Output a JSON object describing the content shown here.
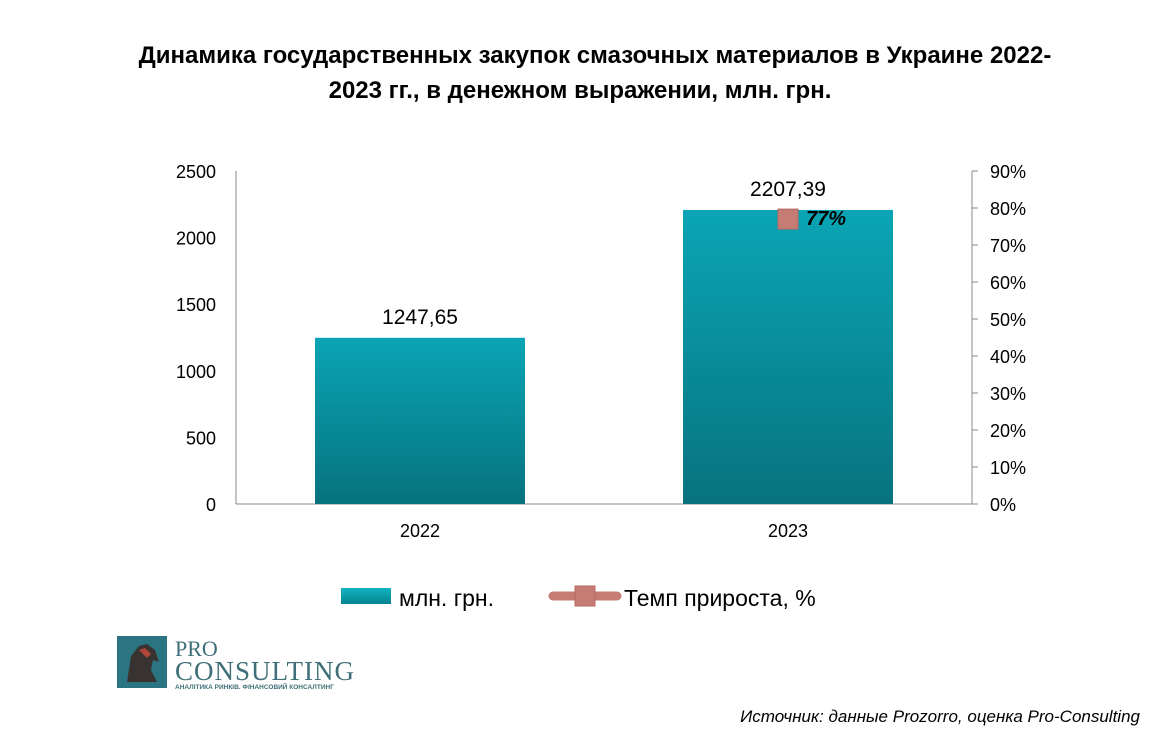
{
  "title_line1": "Динамика государственных закупок смазочных материалов в Украине 2022-",
  "title_line2": "2023 гг., в денежном выражении, млн. грн.",
  "chart_data": {
    "type": "bar",
    "categories": [
      "2022",
      "2023"
    ],
    "series": [
      {
        "name": "млн.  грн.",
        "type": "bar",
        "axis": "left",
        "values": [
          1247.65,
          2207.39
        ],
        "labels": [
          "1247,65",
          "2207,39"
        ],
        "color": "#0b98a8"
      },
      {
        "name": "Темп прироста, %",
        "type": "marker",
        "axis": "right",
        "values": [
          null,
          77
        ],
        "labels": [
          "",
          "77%"
        ],
        "color": "#c47c74"
      }
    ],
    "y_left": {
      "ylim": [
        0,
        2500
      ],
      "ticks": [
        "0",
        "500",
        "1000",
        "1500",
        "2000",
        "2500"
      ]
    },
    "y_right": {
      "ylim": [
        0,
        90
      ],
      "ticks": [
        "0%",
        "10%",
        "20%",
        "30%",
        "40%",
        "50%",
        "60%",
        "70%",
        "80%",
        "90%"
      ]
    },
    "grid": false,
    "legend_position": "bottom"
  },
  "logo": {
    "line1": "PRO",
    "line2": "CONSULTING",
    "tagline": "АНАЛІТИКА РИНКІВ. ФІНАНСОВИЙ КОНСАЛТИНГ"
  },
  "source": "Источник: данные Prozorro, оценка Pro-Consulting"
}
